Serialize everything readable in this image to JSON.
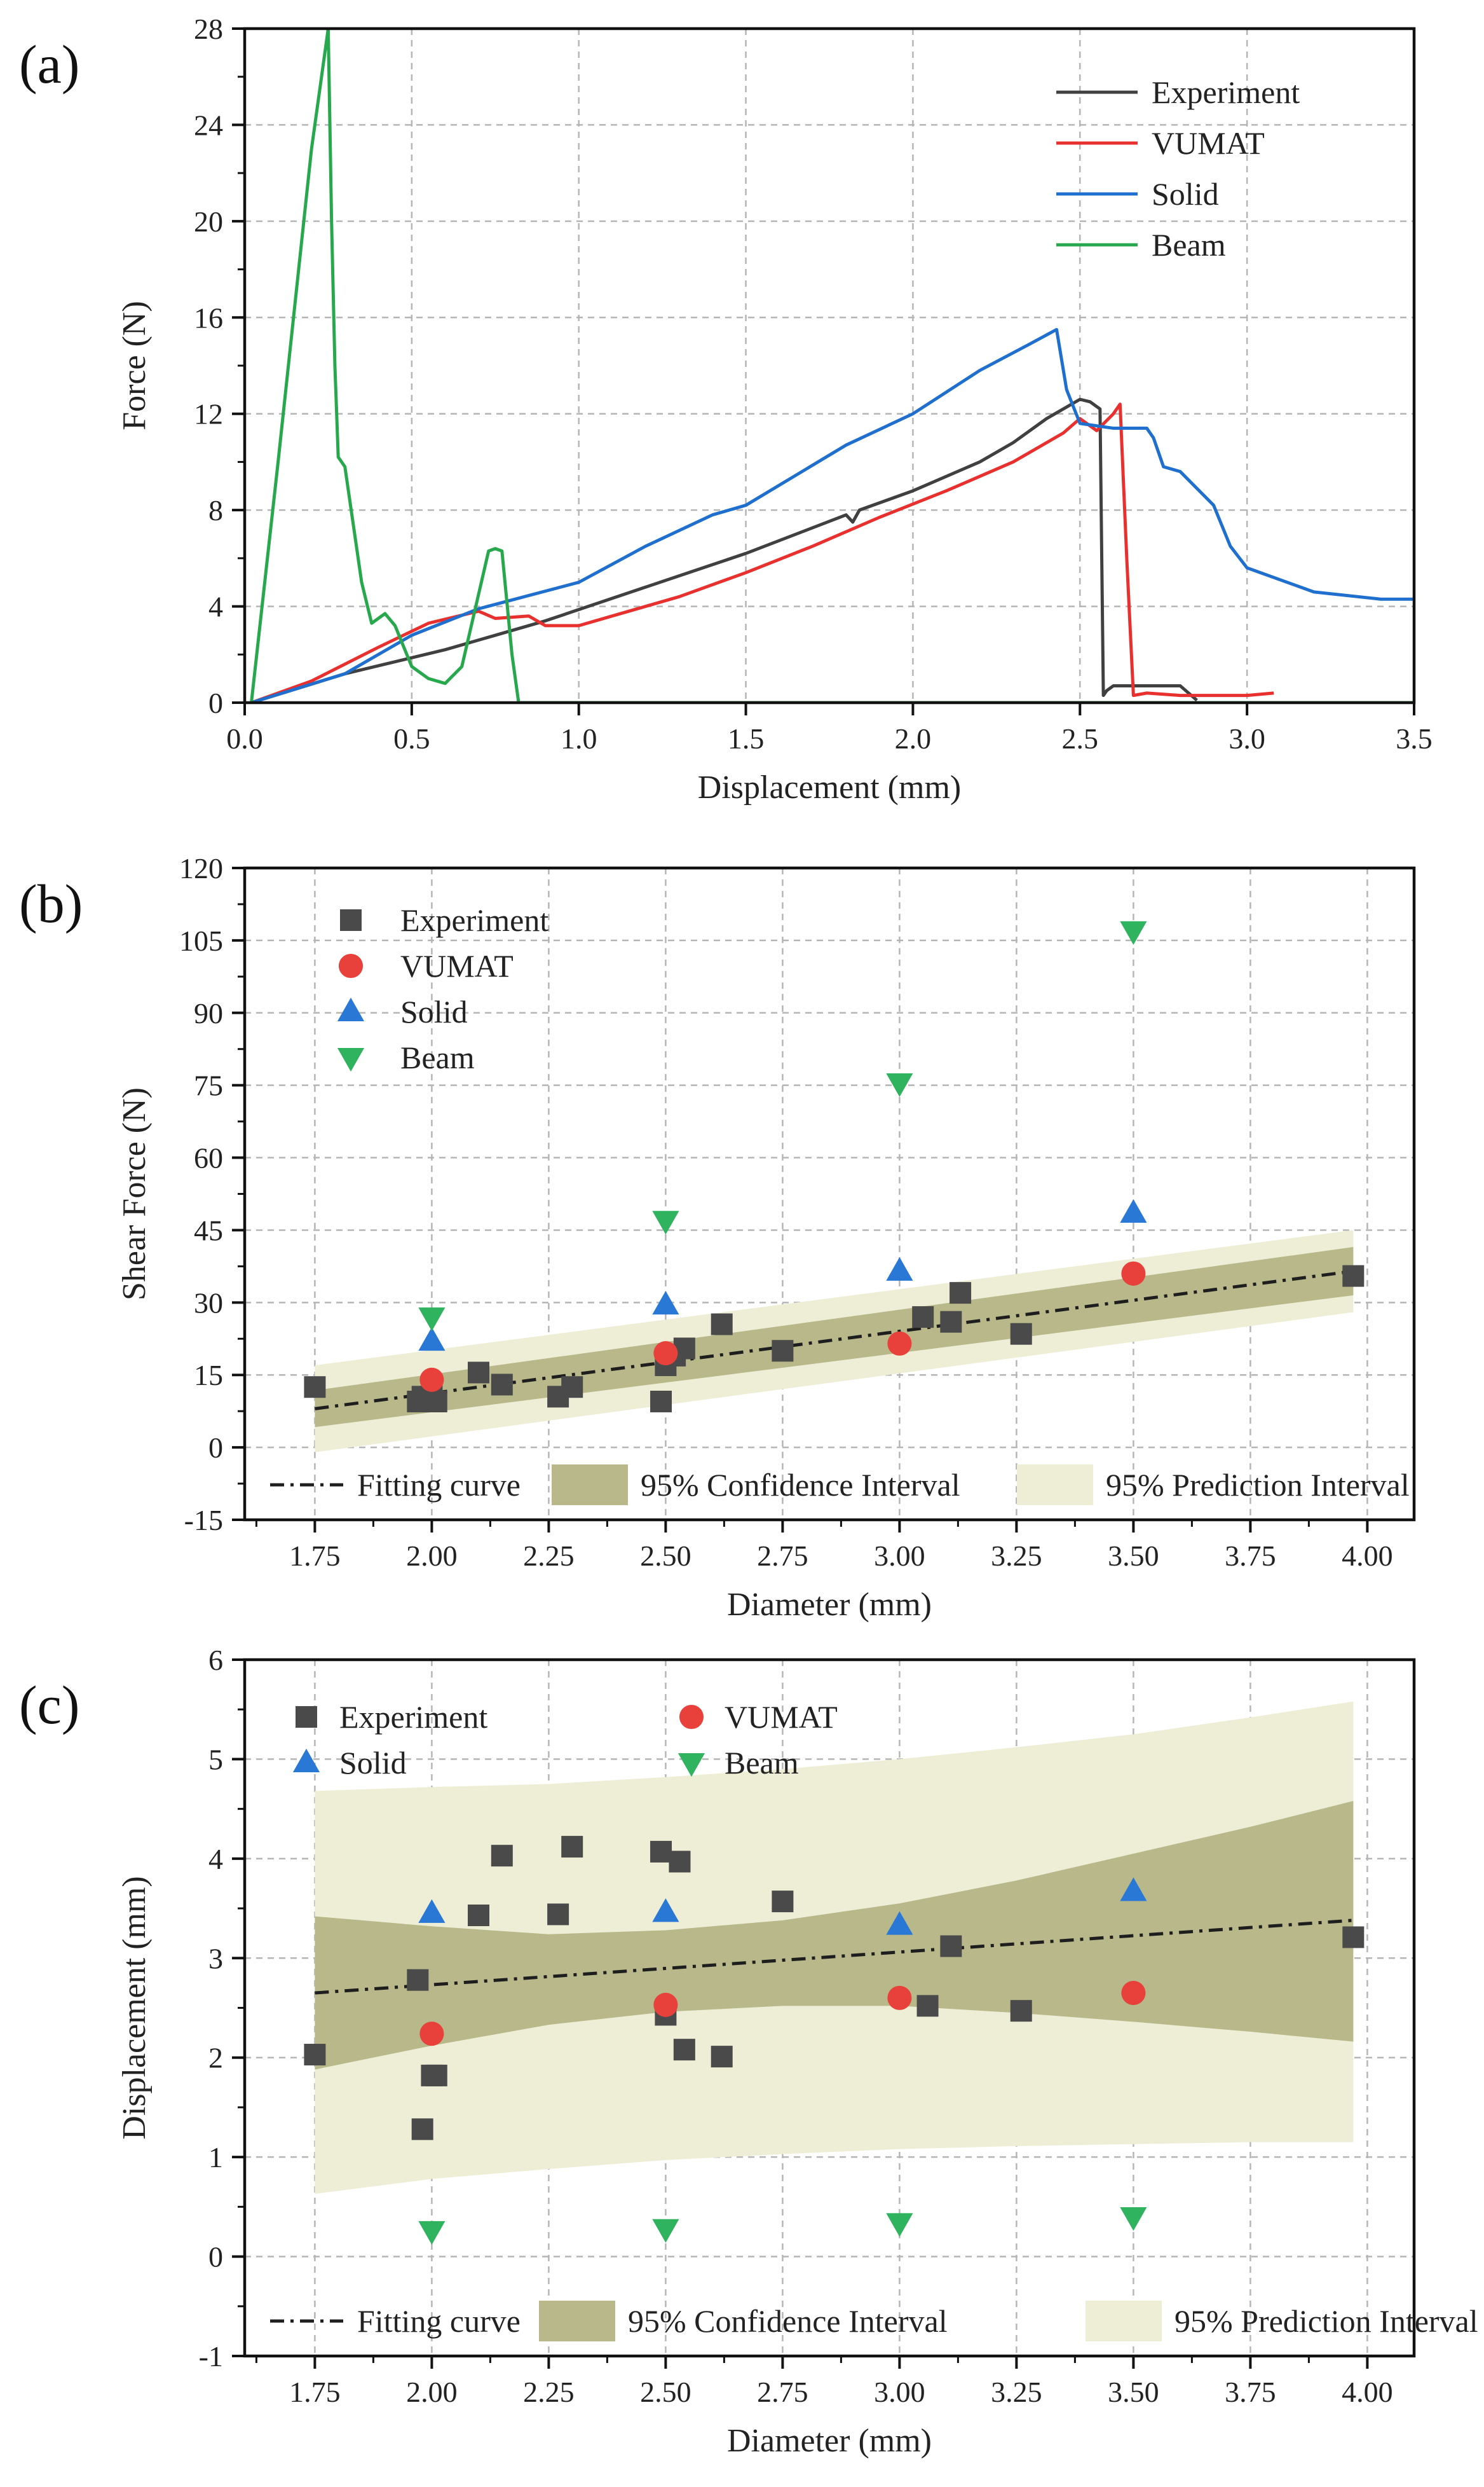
{
  "figure": {
    "panels": [
      "(a)",
      "(b)",
      "(c)"
    ]
  },
  "chart_data": [
    {
      "type": "line",
      "panel_label": "(a)",
      "xlabel": "Displacement (mm)",
      "ylabel": "Force (N)",
      "xlim": [
        0.0,
        3.5
      ],
      "ylim": [
        0,
        28
      ],
      "xticks": [
        0.0,
        0.5,
        1.0,
        1.5,
        2.0,
        2.5,
        3.0,
        3.5
      ],
      "xtick_labels": [
        "0.0",
        "0.5",
        "1.0",
        "1.5",
        "2.0",
        "2.5",
        "3.0",
        "3.5"
      ],
      "yticks": [
        0,
        4,
        8,
        12,
        16,
        20,
        24,
        28
      ],
      "ytick_labels": [
        "0",
        "4",
        "8",
        "12",
        "16",
        "20",
        "24",
        "28"
      ],
      "grid": true,
      "legend_position": "top-right",
      "series": [
        {
          "name": "Experiment",
          "color": "#404040",
          "x": [
            0.02,
            0.3,
            0.6,
            0.9,
            1.2,
            1.5,
            1.8,
            1.82,
            1.84,
            2.0,
            2.2,
            2.3,
            2.4,
            2.5,
            2.53,
            2.56,
            2.57,
            2.58,
            2.6,
            2.7,
            2.8,
            2.85
          ],
          "y": [
            0,
            1.2,
            2.2,
            3.4,
            4.8,
            6.2,
            7.8,
            7.5,
            8.0,
            8.8,
            10.0,
            10.8,
            11.8,
            12.6,
            12.5,
            12.2,
            0.3,
            0.5,
            0.7,
            0.7,
            0.7,
            0.1
          ]
        },
        {
          "name": "VUMAT",
          "color": "#e8312e",
          "x": [
            0.02,
            0.2,
            0.4,
            0.55,
            0.7,
            0.75,
            0.85,
            0.9,
            1.0,
            1.1,
            1.3,
            1.5,
            1.7,
            1.9,
            2.1,
            2.3,
            2.45,
            2.5,
            2.55,
            2.6,
            2.62,
            2.64,
            2.66,
            2.7,
            2.8,
            2.9,
            3.0,
            3.08
          ],
          "y": [
            0,
            0.9,
            2.3,
            3.3,
            3.8,
            3.5,
            3.6,
            3.2,
            3.2,
            3.6,
            4.4,
            5.4,
            6.5,
            7.7,
            8.8,
            10.0,
            11.2,
            11.8,
            11.3,
            12.0,
            12.4,
            6.0,
            0.3,
            0.4,
            0.3,
            0.3,
            0.3,
            0.4
          ]
        },
        {
          "name": "Solid",
          "color": "#1f6fce",
          "x": [
            0.02,
            0.3,
            0.5,
            0.7,
            1.0,
            1.2,
            1.4,
            1.5,
            1.8,
            2.0,
            2.2,
            2.35,
            2.43,
            2.46,
            2.5,
            2.6,
            2.7,
            2.72,
            2.75,
            2.8,
            2.9,
            2.95,
            3.0,
            3.2,
            3.4,
            3.5
          ],
          "y": [
            0,
            1.2,
            2.8,
            3.9,
            5.0,
            6.5,
            7.8,
            8.2,
            10.7,
            12.0,
            13.8,
            14.9,
            15.5,
            13.0,
            11.6,
            11.4,
            11.4,
            11.0,
            9.8,
            9.6,
            8.2,
            6.5,
            5.6,
            4.6,
            4.3,
            4.3
          ]
        },
        {
          "name": "Beam",
          "color": "#27a84d",
          "x": [
            0.02,
            0.1,
            0.2,
            0.25,
            0.26,
            0.27,
            0.28,
            0.3,
            0.35,
            0.38,
            0.42,
            0.45,
            0.5,
            0.55,
            0.6,
            0.65,
            0.7,
            0.73,
            0.75,
            0.77,
            0.8,
            0.82,
            1.0,
            3.5
          ],
          "y": [
            0,
            10,
            23,
            28,
            20,
            14,
            10.2,
            9.8,
            5.0,
            3.3,
            3.7,
            3.2,
            1.5,
            1.0,
            0.8,
            1.5,
            4.5,
            6.3,
            6.4,
            6.3,
            2.0,
            0,
            0,
            0
          ]
        }
      ]
    },
    {
      "type": "scatter",
      "panel_label": "(b)",
      "xlabel": "Diameter (mm)",
      "ylabel": "Shear Force (N)",
      "xlim": [
        1.6,
        4.1
      ],
      "ylim": [
        -15,
        120
      ],
      "xticks": [
        1.75,
        2.0,
        2.25,
        2.5,
        2.75,
        3.0,
        3.25,
        3.5,
        3.75,
        4.0
      ],
      "xtick_labels": [
        "1.75",
        "2.00",
        "2.25",
        "2.50",
        "2.75",
        "3.00",
        "3.25",
        "3.50",
        "3.75",
        "4.00"
      ],
      "yticks": [
        -15,
        0,
        15,
        30,
        45,
        60,
        75,
        90,
        105,
        120
      ],
      "ytick_labels": [
        "-15",
        "0",
        "15",
        "30",
        "45",
        "60",
        "75",
        "90",
        "105",
        "120"
      ],
      "grid": true,
      "legend_position": "top-left",
      "series": [
        {
          "name": "Experiment",
          "marker": "square",
          "color": "#4a4a4a",
          "x": [
            1.75,
            1.97,
            1.98,
            2.0,
            2.01,
            2.1,
            2.15,
            2.27,
            2.3,
            2.49,
            2.5,
            2.52,
            2.54,
            2.62,
            2.75,
            3.05,
            3.11,
            3.13,
            3.26,
            3.97
          ],
          "y": [
            12.5,
            9.5,
            10.5,
            12.0,
            9.5,
            15.5,
            13.0,
            10.5,
            12.5,
            9.5,
            17.0,
            19.0,
            20.5,
            25.5,
            20.0,
            27.0,
            26.0,
            32.0,
            23.5,
            35.5
          ]
        },
        {
          "name": "VUMAT",
          "marker": "circle",
          "color": "#e8403a",
          "x": [
            2.0,
            2.5,
            3.0,
            3.5
          ],
          "y": [
            14.0,
            19.5,
            21.5,
            36.0
          ]
        },
        {
          "name": "Solid",
          "marker": "triangle-up",
          "color": "#2a78d6",
          "x": [
            2.0,
            2.5,
            3.0,
            3.5
          ],
          "y": [
            22.0,
            29.5,
            36.5,
            48.5
          ]
        },
        {
          "name": "Beam",
          "marker": "triangle-down",
          "color": "#2fb35e",
          "x": [
            2.0,
            2.5,
            3.0,
            3.5
          ],
          "y": [
            27.0,
            47.0,
            75.5,
            107.0
          ]
        }
      ],
      "fit": {
        "name": "Fitting curve",
        "x": [
          1.75,
          3.97
        ],
        "y": [
          8.0,
          36.5
        ],
        "confidence_name": "95% Confidence Interval",
        "confidence_upper": [
          11.8,
          41.5
        ],
        "confidence_lower": [
          4.2,
          31.5
        ],
        "prediction_name": "95% Prediction Interval",
        "prediction_upper": [
          17.0,
          45.0
        ],
        "prediction_lower": [
          -1.0,
          28.0
        ]
      }
    },
    {
      "type": "scatter",
      "panel_label": "(c)",
      "xlabel": "Diameter (mm)",
      "ylabel": "Displacement (mm)",
      "xlim": [
        1.6,
        4.1
      ],
      "ylim": [
        -1,
        6
      ],
      "xticks": [
        1.75,
        2.0,
        2.25,
        2.5,
        2.75,
        3.0,
        3.25,
        3.5,
        3.75,
        4.0
      ],
      "xtick_labels": [
        "1.75",
        "2.00",
        "2.25",
        "2.50",
        "2.75",
        "3.00",
        "3.25",
        "3.50",
        "3.75",
        "4.00"
      ],
      "yticks": [
        -1,
        0,
        1,
        2,
        3,
        4,
        5,
        6
      ],
      "ytick_labels": [
        "-1",
        "0",
        "1",
        "2",
        "3",
        "4",
        "5",
        "6"
      ],
      "grid": true,
      "legend_position": "top-left",
      "series": [
        {
          "name": "Experiment",
          "marker": "square",
          "color": "#4a4a4a",
          "x": [
            1.75,
            1.97,
            1.98,
            2.0,
            2.01,
            2.1,
            2.15,
            2.27,
            2.3,
            2.49,
            2.5,
            2.53,
            2.54,
            2.62,
            2.75,
            3.06,
            3.11,
            3.26,
            3.97
          ],
          "y": [
            2.03,
            2.78,
            1.28,
            1.82,
            1.82,
            3.43,
            4.03,
            3.44,
            4.12,
            4.07,
            2.43,
            3.97,
            2.08,
            2.01,
            3.57,
            2.52,
            3.12,
            2.47,
            3.21
          ]
        },
        {
          "name": "VUMAT",
          "marker": "circle",
          "color": "#e8403a",
          "x": [
            2.0,
            2.5,
            3.0,
            3.5
          ],
          "y": [
            2.24,
            2.53,
            2.6,
            2.65
          ]
        },
        {
          "name": "Solid",
          "marker": "triangle-up",
          "color": "#2a78d6",
          "x": [
            2.0,
            2.5,
            3.0,
            3.5
          ],
          "y": [
            3.45,
            3.46,
            3.33,
            3.67
          ]
        },
        {
          "name": "Beam",
          "marker": "triangle-down",
          "color": "#2fb35e",
          "x": [
            2.0,
            2.5,
            3.0,
            3.5
          ],
          "y": [
            0.26,
            0.28,
            0.34,
            0.4
          ]
        }
      ],
      "fit": {
        "name": "Fitting curve",
        "x": [
          1.75,
          3.97
        ],
        "y": [
          2.65,
          3.38
        ],
        "confidence_name": "95% Confidence Interval",
        "confidence_x": [
          1.75,
          2.0,
          2.25,
          2.5,
          2.75,
          3.0,
          3.25,
          3.5,
          3.75,
          3.97
        ],
        "confidence_upper": [
          3.42,
          3.32,
          3.24,
          3.28,
          3.38,
          3.55,
          3.78,
          4.05,
          4.32,
          4.58
        ],
        "confidence_lower": [
          1.88,
          2.12,
          2.33,
          2.46,
          2.52,
          2.52,
          2.45,
          2.36,
          2.26,
          2.16
        ],
        "prediction_name": "95% Prediction Interval",
        "prediction_x": [
          1.75,
          2.0,
          2.25,
          2.5,
          2.75,
          3.0,
          3.25,
          3.5,
          3.75,
          3.97
        ],
        "prediction_upper": [
          4.68,
          4.72,
          4.75,
          4.82,
          4.9,
          5.0,
          5.12,
          5.25,
          5.42,
          5.58
        ],
        "prediction_lower": [
          0.63,
          0.78,
          0.88,
          0.97,
          1.03,
          1.08,
          1.11,
          1.13,
          1.15,
          1.15
        ]
      }
    }
  ]
}
